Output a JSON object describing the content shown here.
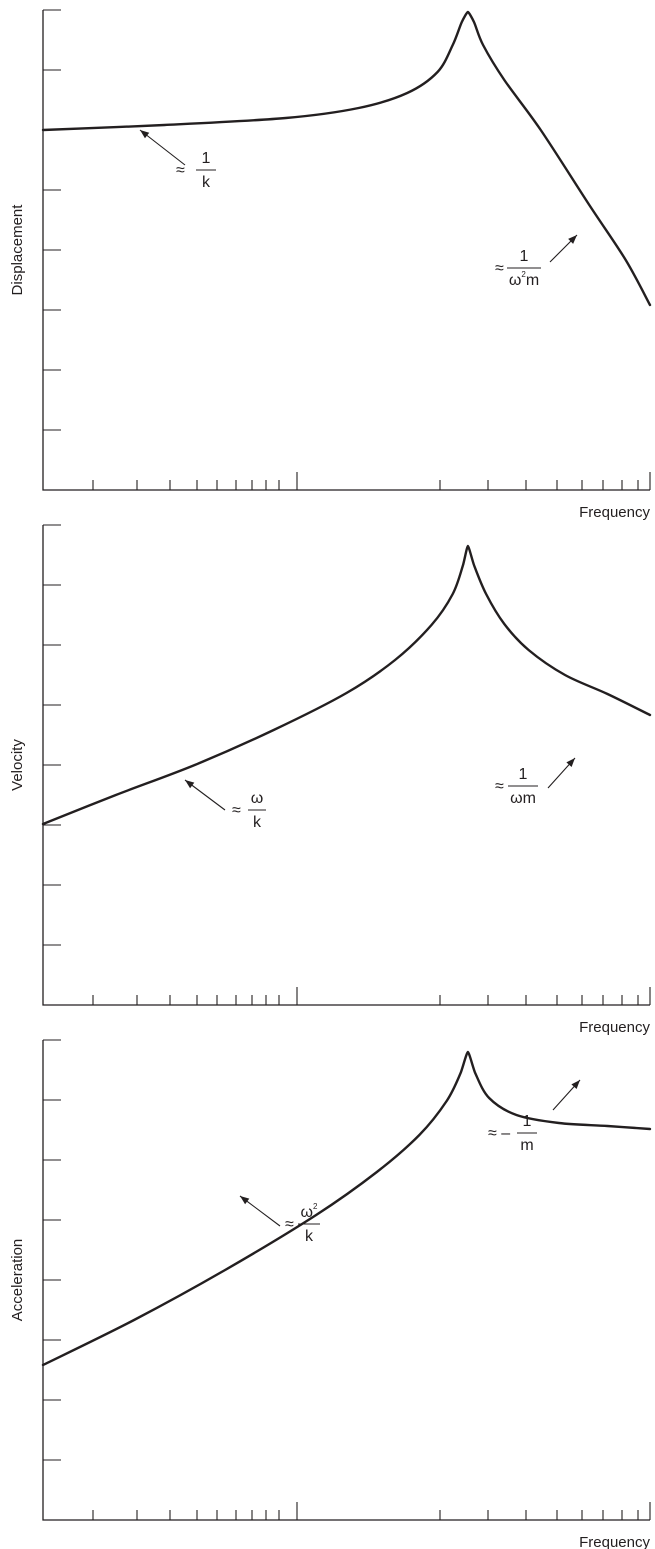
{
  "chart_data": [
    {
      "type": "line",
      "xlabel": "Frequency",
      "ylabel": "Displacement",
      "x_scale": "log",
      "y_scale": "log",
      "resonance_x": 0.7,
      "annotations": [
        {
          "approx": "≈",
          "sign": "",
          "num": "1",
          "den": "k",
          "den_sup": ""
        },
        {
          "approx": "≈",
          "sign": "",
          "num": "1",
          "den": "ωm",
          "den_sup": "2"
        }
      ]
    },
    {
      "type": "line",
      "xlabel": "Frequency",
      "ylabel": "Velocity",
      "x_scale": "log",
      "y_scale": "log",
      "resonance_x": 0.7,
      "annotations": [
        {
          "approx": "≈",
          "sign": "",
          "num": "ω",
          "den": "k",
          "num_sup": ""
        },
        {
          "approx": "≈",
          "sign": "",
          "num": "1",
          "den": "ωm"
        }
      ]
    },
    {
      "type": "line",
      "xlabel": "Frequency",
      "ylabel": "Acceleration",
      "x_scale": "log",
      "y_scale": "log",
      "resonance_x": 0.7,
      "annotations": [
        {
          "approx": "≈",
          "sign": "",
          "num": "ω",
          "den": "k",
          "num_sup": "2"
        },
        {
          "approx": "≈",
          "sign": "–",
          "num": "1",
          "den": "m"
        }
      ]
    }
  ]
}
